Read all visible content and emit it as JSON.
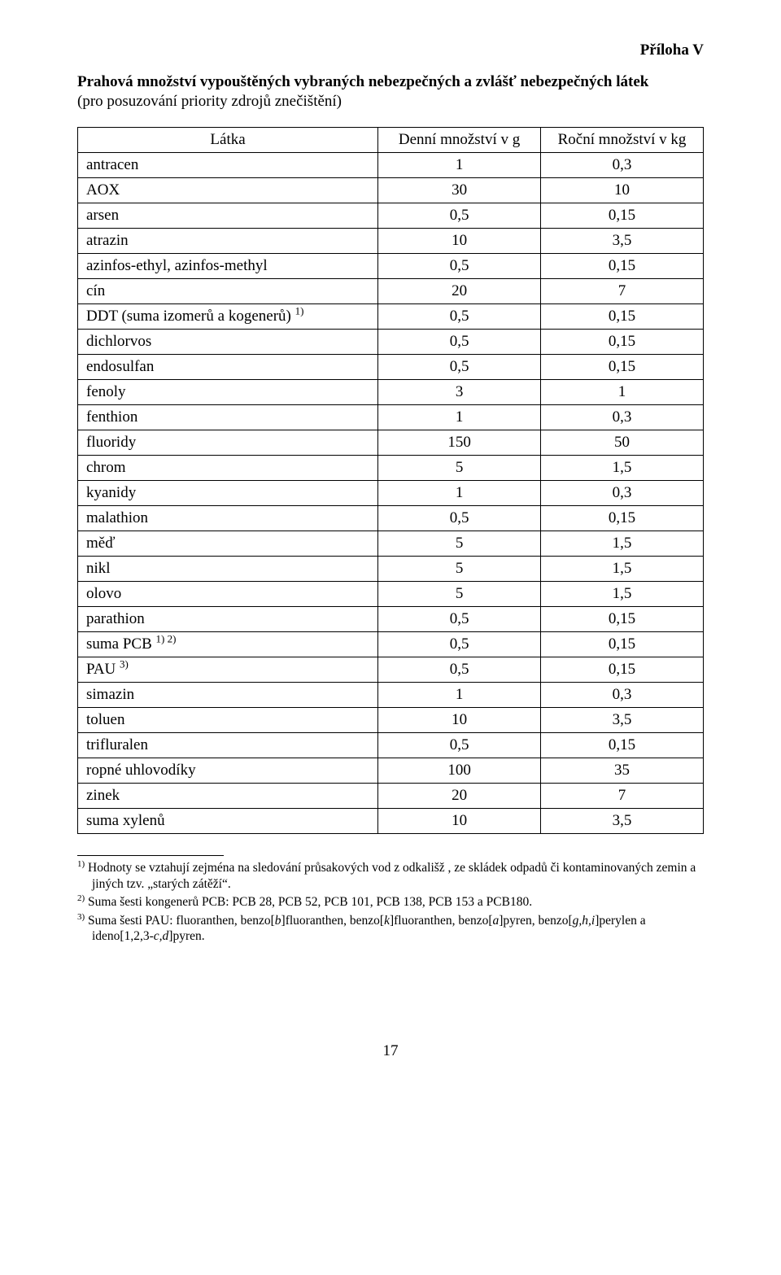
{
  "appendix_label": "Příloha V",
  "title": "Prahová množství vypouštěných vybraných nebezpečných a zvlášť nebezpečných látek",
  "subtitle": "(pro posuzování priority zdrojů znečištění)",
  "table": {
    "headers": {
      "substance": "Látka",
      "daily": "Denní množství v g",
      "yearly": "Roční množství v kg"
    },
    "rows": [
      {
        "substance": "antracen",
        "daily": "1",
        "yearly": "0,3"
      },
      {
        "substance": "AOX",
        "daily": "30",
        "yearly": "10"
      },
      {
        "substance": "arsen",
        "daily": "0,5",
        "yearly": "0,15"
      },
      {
        "substance": "atrazin",
        "daily": "10",
        "yearly": "3,5"
      },
      {
        "substance": "azinfos-ethyl, azinfos-methyl",
        "daily": "0,5",
        "yearly": "0,15"
      },
      {
        "substance": "cín",
        "daily": "20",
        "yearly": "7"
      },
      {
        "substance_html": "DDT (suma izomerů a kogenerů) <sup>1)</sup>",
        "daily": "0,5",
        "yearly": "0,15"
      },
      {
        "substance": "dichlorvos",
        "daily": "0,5",
        "yearly": "0,15"
      },
      {
        "substance": "endosulfan",
        "daily": "0,5",
        "yearly": "0,15"
      },
      {
        "substance": "fenoly",
        "daily": "3",
        "yearly": "1"
      },
      {
        "substance": "fenthion",
        "daily": "1",
        "yearly": "0,3"
      },
      {
        "substance": "fluoridy",
        "daily": "150",
        "yearly": "50"
      },
      {
        "substance": "chrom",
        "daily": "5",
        "yearly": "1,5"
      },
      {
        "substance": "kyanidy",
        "daily": "1",
        "yearly": "0,3"
      },
      {
        "substance": "malathion",
        "daily": "0,5",
        "yearly": "0,15"
      },
      {
        "substance": "měď",
        "daily": "5",
        "yearly": "1,5"
      },
      {
        "substance": "nikl",
        "daily": "5",
        "yearly": "1,5"
      },
      {
        "substance": "olovo",
        "daily": "5",
        "yearly": "1,5"
      },
      {
        "substance": "parathion",
        "daily": "0,5",
        "yearly": "0,15"
      },
      {
        "substance_html": "suma PCB <sup>1) 2)</sup>",
        "daily": "0,5",
        "yearly": "0,15"
      },
      {
        "substance_html": "PAU <sup>3)</sup>",
        "daily": "0,5",
        "yearly": "0,15"
      },
      {
        "substance": "simazin",
        "daily": "1",
        "yearly": "0,3"
      },
      {
        "substance": "toluen",
        "daily": "10",
        "yearly": "3,5"
      },
      {
        "substance": "trifluralen",
        "daily": "0,5",
        "yearly": "0,15"
      },
      {
        "substance": "ropné uhlovodíky",
        "daily": "100",
        "yearly": "35"
      },
      {
        "substance": "zinek",
        "daily": "20",
        "yearly": "7"
      },
      {
        "substance": "suma xylenů",
        "daily": "10",
        "yearly": "3,5"
      }
    ]
  },
  "footnotes": [
    "<span class=\"sup\">1)</span> Hodnoty se vztahují zejména na sledování průsakových vod z odkališž , ze skládek odpadů či kontaminovaných zemin a jiných tzv. „starých zátěží“.",
    "<span class=\"sup\">2)</span> Suma šesti kongenerů PCB: PCB 28, PCB 52, PCB 101, PCB 138, PCB 153 a PCB180.",
    "<span class=\"sup\">3)</span> Suma šesti PAU: fluoranthen, benzo[<span class=\"italic\">b</span>]fluoranthen, benzo[<span class=\"italic\">k</span>]fluoranthen, benzo[<span class=\"italic\">a</span>]pyren, benzo[<span class=\"italic\">g,h,i</span>]perylen a ideno[1,2,3-<span class=\"italic\">c,d</span>]pyren."
  ],
  "page_number": "17"
}
